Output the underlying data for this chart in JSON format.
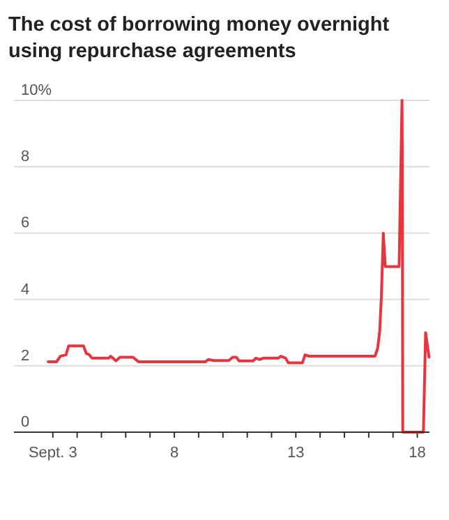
{
  "chart_data": {
    "type": "line",
    "title": "The cost of borrowing money overnight using repurchase agreements",
    "xlim": [
      1.4,
      18.5
    ],
    "xticks": [
      {
        "value": 3,
        "label": "Sept. 3"
      },
      {
        "value": 4,
        "label": null
      },
      {
        "value": 5,
        "label": null
      },
      {
        "value": 6,
        "label": null
      },
      {
        "value": 7,
        "label": null
      },
      8,
      {
        "value": 9,
        "label": null
      },
      {
        "value": 10,
        "label": null
      },
      {
        "value": 11,
        "label": null
      },
      {
        "value": 12,
        "label": null
      },
      13,
      {
        "value": 14,
        "label": null
      },
      {
        "value": 15,
        "label": null
      },
      {
        "value": 16,
        "label": null
      },
      {
        "value": 17,
        "label": null
      },
      18
    ],
    "ylim": [
      0,
      10
    ],
    "yticks": [
      0,
      2,
      4,
      6,
      8,
      {
        "value": 10,
        "label": "10%"
      }
    ],
    "grid": "y",
    "series": [
      {
        "color": "#e8343f",
        "x": [
          2.81,
          3.15,
          3.31,
          3.54,
          3.65,
          4.26,
          4.38,
          4.49,
          4.61,
          5.3,
          5.38,
          5.6,
          5.76,
          6.3,
          6.52,
          9.28,
          9.4,
          9.63,
          10.24,
          10.4,
          10.55,
          10.66,
          11.24,
          11.36,
          11.5,
          11.66,
          12.27,
          12.39,
          12.58,
          12.69,
          13.27,
          13.38,
          13.54,
          16.26,
          16.37,
          16.45,
          16.52,
          16.6,
          16.68,
          17.25,
          17.37,
          17.38,
          17.4,
          18.25,
          18.34,
          18.48
        ],
        "values": [
          2.12,
          2.12,
          2.29,
          2.33,
          2.6,
          2.6,
          2.37,
          2.34,
          2.23,
          2.23,
          2.29,
          2.15,
          2.26,
          2.26,
          2.12,
          2.12,
          2.19,
          2.16,
          2.16,
          2.26,
          2.26,
          2.15,
          2.15,
          2.23,
          2.19,
          2.23,
          2.23,
          2.29,
          2.23,
          2.09,
          2.09,
          2.33,
          2.29,
          2.29,
          2.54,
          3.03,
          4.07,
          6.0,
          4.99,
          4.99,
          10,
          8.5,
          0,
          0,
          3.0,
          2.26
        ]
      }
    ]
  }
}
